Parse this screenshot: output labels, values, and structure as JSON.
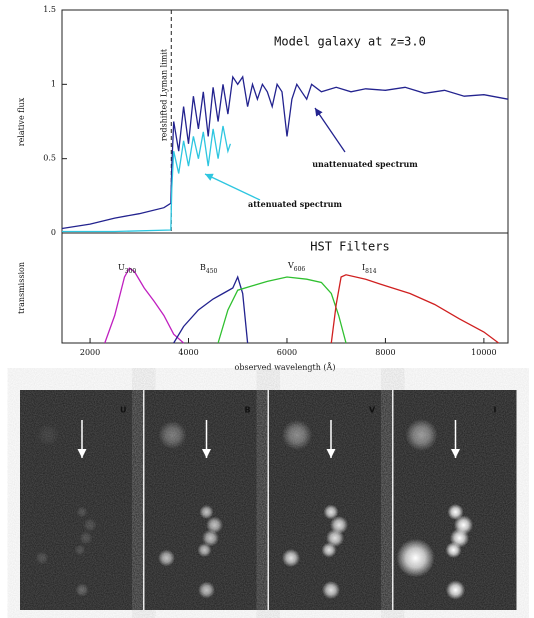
{
  "chart_data": [
    {
      "type": "line",
      "title": "Model galaxy at z=3.0",
      "y_label": "relative flux",
      "xlim": [
        1430,
        10490
      ],
      "ylim": [
        0,
        1.5
      ],
      "yticks": [
        0,
        0.5,
        1,
        1.5
      ],
      "annotations": [
        {
          "text": "redshifted Lyman limit",
          "x": 3650
        }
      ],
      "series": [
        {
          "name": "unattenuated spectrum",
          "color": "#23238f",
          "x": [
            1430,
            2000,
            2500,
            3000,
            3500,
            3640,
            3660,
            3700,
            3800,
            3900,
            4000,
            4100,
            4200,
            4300,
            4400,
            4500,
            4600,
            4700,
            4800,
            4900,
            5000,
            5100,
            5200,
            5300,
            5400,
            5500,
            5600,
            5700,
            5800,
            5900,
            6000,
            6100,
            6200,
            6300,
            6400,
            6500,
            6700,
            7000,
            7300,
            7600,
            8000,
            8400,
            8800,
            9200,
            9600,
            10000,
            10490
          ],
          "values": [
            0.03,
            0.06,
            0.1,
            0.13,
            0.17,
            0.2,
            0.45,
            0.75,
            0.55,
            0.85,
            0.6,
            0.92,
            0.7,
            0.95,
            0.65,
            0.98,
            0.75,
            1.0,
            0.8,
            1.05,
            1.0,
            1.05,
            0.85,
            1.0,
            0.9,
            1.0,
            0.95,
            0.85,
            1.0,
            0.95,
            0.65,
            0.9,
            1.0,
            0.95,
            0.9,
            1.0,
            0.95,
            0.98,
            0.95,
            0.97,
            0.96,
            0.98,
            0.94,
            0.96,
            0.92,
            0.93,
            0.9
          ]
        },
        {
          "name": "attenuated spectrum",
          "color": "#2ec6e0",
          "x": [
            1430,
            2500,
            3640,
            3660,
            3700,
            3800,
            3900,
            4000,
            4100,
            4200,
            4300,
            4400,
            4500,
            4600,
            4700,
            4800,
            4850
          ],
          "values": [
            0.01,
            0.01,
            0.02,
            0.3,
            0.55,
            0.4,
            0.62,
            0.45,
            0.65,
            0.5,
            0.68,
            0.45,
            0.7,
            0.5,
            0.72,
            0.55,
            0.6
          ]
        }
      ]
    },
    {
      "type": "line",
      "title": "HST Filters",
      "x_label": "observed wavelength (Å)",
      "y_label": "transmission",
      "xlim": [
        1430,
        10490
      ],
      "ylim": [
        0,
        1
      ],
      "xticks": [
        2000,
        4000,
        6000,
        8000,
        10000
      ],
      "series": [
        {
          "name": "U300",
          "color": "#c020c0",
          "x": [
            2300,
            2500,
            2700,
            2800,
            2900,
            3100,
            3300,
            3500,
            3700,
            3900
          ],
          "values": [
            0,
            0.25,
            0.6,
            0.68,
            0.65,
            0.5,
            0.38,
            0.25,
            0.08,
            0
          ]
        },
        {
          "name": "B450",
          "color": "#23238f",
          "x": [
            3700,
            3900,
            4200,
            4500,
            4700,
            4900,
            5000,
            5100,
            5200
          ],
          "values": [
            0,
            0.15,
            0.3,
            0.4,
            0.45,
            0.5,
            0.6,
            0.45,
            0
          ]
        },
        {
          "name": "V606",
          "color": "#30c030",
          "x": [
            4600,
            4800,
            5000,
            5300,
            5600,
            6000,
            6400,
            6700,
            6900,
            7050,
            7200
          ],
          "values": [
            0,
            0.3,
            0.48,
            0.52,
            0.56,
            0.6,
            0.58,
            0.55,
            0.45,
            0.25,
            0
          ]
        },
        {
          "name": "I814",
          "color": "#d02020",
          "x": [
            6900,
            7000,
            7100,
            7200,
            7600,
            8000,
            8500,
            9000,
            9500,
            10000,
            10300
          ],
          "values": [
            0,
            0.35,
            0.6,
            0.62,
            0.58,
            0.52,
            0.45,
            0.35,
            0.22,
            0.1,
            0
          ]
        }
      ]
    }
  ],
  "image_panels": [
    {
      "label": "U",
      "color": "#c020c0"
    },
    {
      "label": "B",
      "color": "#2ec6e0"
    },
    {
      "label": "V",
      "color": "#30c030"
    },
    {
      "label": "I",
      "color": "#e02020"
    }
  ]
}
